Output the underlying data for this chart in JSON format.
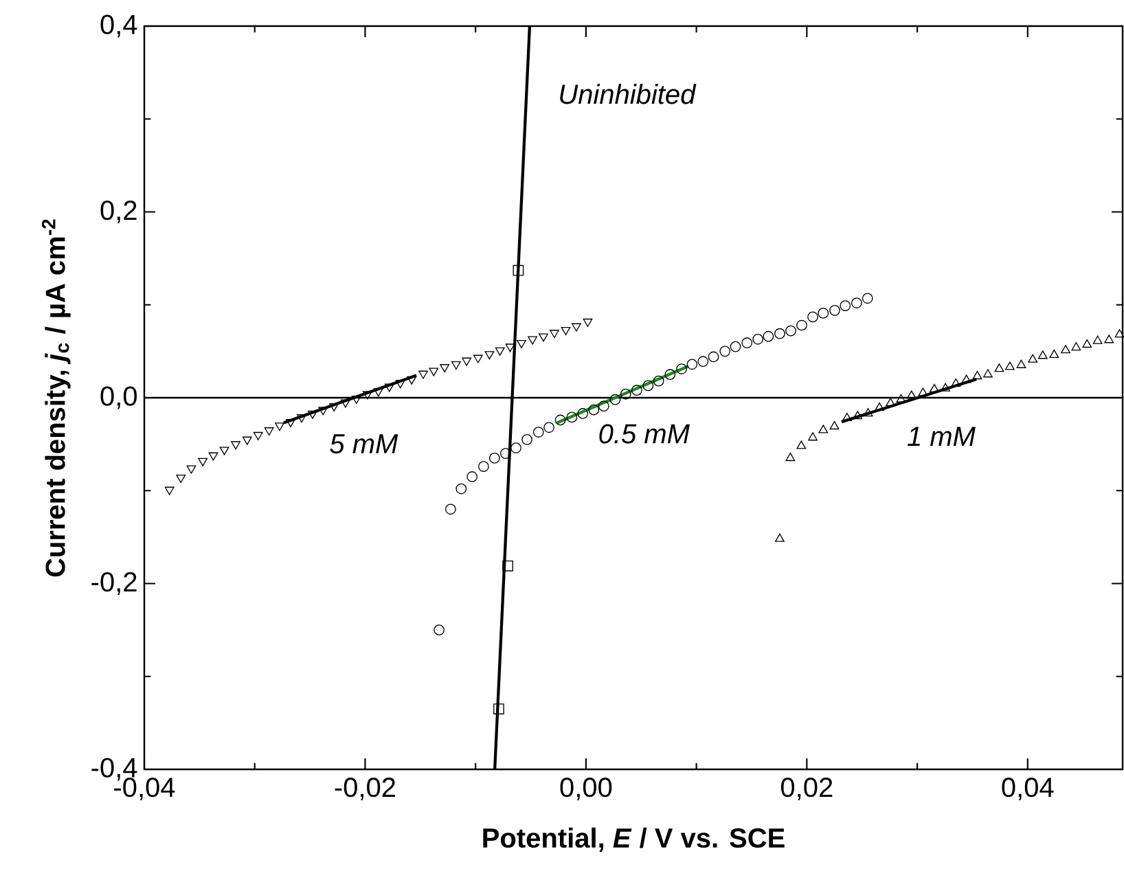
{
  "chart_data": {
    "type": "scatter",
    "xlabel": "Potential, *E* / V vs. SCE",
    "ylabel": "Current density, *j*$_{c}$ / µA cm$^{-2}$",
    "xlim": [
      -0.04,
      0.0486
    ],
    "ylim": [
      -0.4,
      0.4
    ],
    "xticks": [
      {
        "value": -0.04,
        "label": "-0,04"
      },
      {
        "value": -0.02,
        "label": "-0,02"
      },
      {
        "value": 0,
        "label": "0,00"
      },
      {
        "value": 0.02,
        "label": "0,02"
      },
      {
        "value": 0.04,
        "label": "0,04"
      }
    ],
    "yticks": [
      {
        "value": -0.4,
        "label": "-0,4"
      },
      {
        "value": -0.2,
        "label": "-0,2"
      },
      {
        "value": 0,
        "label": "0,0"
      },
      {
        "value": 0.2,
        "label": "0,2"
      },
      {
        "value": 0.4,
        "label": "0,4"
      }
    ],
    "ref_lines": [
      {
        "axis": "y",
        "value": 0,
        "color": "#000000"
      }
    ],
    "series": [
      {
        "name": "5 mM",
        "marker": "triangle-down",
        "color": "#000000",
        "x": [
          -0.03772,
          -0.03669,
          -0.03574,
          -0.0347,
          -0.03375,
          -0.03275,
          -0.03172,
          -0.03068,
          -0.02969,
          -0.0287,
          -0.02774,
          -0.02675,
          -0.02575,
          -0.02476,
          -0.02381,
          -0.02282,
          -0.02178,
          -0.02079,
          -0.01979,
          -0.0188,
          -0.0178,
          -0.01681,
          -0.01578,
          -0.01474,
          -0.01379,
          -0.0128,
          -0.01176,
          -0.01081,
          -0.00977,
          -0.00874,
          -0.00779,
          -0.00687,
          -0.00584,
          -0.00484,
          -0.00385,
          -0.00286,
          -0.00183,
          -0.00087,
          0.00016
        ],
        "values": [
          -0.099,
          -0.086,
          -0.076,
          -0.068,
          -0.062,
          -0.056,
          -0.05,
          -0.045,
          -0.04,
          -0.035,
          -0.03,
          -0.026,
          -0.021,
          -0.017,
          -0.013,
          -0.009,
          -0.005,
          -0.001,
          0.004,
          0.007,
          0.012,
          0.016,
          0.02,
          0.026,
          0.029,
          0.033,
          0.036,
          0.04,
          0.043,
          0.047,
          0.051,
          0.055,
          0.059,
          0.063,
          0.066,
          0.07,
          0.073,
          0.077,
          0.082
        ]
      },
      {
        "type": "line",
        "color": "#000000",
        "x": [
          -0.02737,
          -0.01536
        ],
        "values": [
          -0.027,
          0.024
        ]
      },
      {
        "name": "0.5 mM",
        "marker": "circle",
        "color": "#000000",
        "x": [
          -0.0133,
          -0.01226,
          -0.0113,
          -0.01031,
          -0.00927,
          -0.00828,
          -0.00728,
          -0.00634,
          -0.00534,
          -0.0043,
          -0.00335,
          -0.00232,
          -0.00128,
          -0.00029,
          0.00071,
          0.00161,
          0.00265,
          0.0036,
          0.0046,
          0.00563,
          0.00658,
          0.00762,
          0.00866,
          0.00961,
          0.0106,
          0.01155,
          0.01259,
          0.01354,
          0.01458,
          0.01557,
          0.01652,
          0.01755,
          0.01855,
          0.01954,
          0.02054,
          0.02149,
          0.02253,
          0.02348,
          0.02451,
          0.0255
        ],
        "values": [
          -0.25,
          -0.12,
          -0.098,
          -0.085,
          -0.074,
          -0.065,
          -0.06,
          -0.054,
          -0.045,
          -0.037,
          -0.032,
          -0.024,
          -0.021,
          -0.017,
          -0.013,
          -0.009,
          -0.002,
          0.004,
          0.008,
          0.013,
          0.018,
          0.025,
          0.031,
          0.036,
          0.039,
          0.044,
          0.05,
          0.055,
          0.059,
          0.063,
          0.066,
          0.069,
          0.072,
          0.078,
          0.087,
          0.091,
          0.094,
          0.099,
          0.102,
          0.107
        ]
      },
      {
        "type": "line",
        "color": "#1a8c1a",
        "x": [
          -0.00261,
          0.00928
        ],
        "values": [
          -0.027,
          0.034
        ]
      },
      {
        "name": "1 mM",
        "marker": "triangle",
        "color": "#000000",
        "x": [
          0.01755,
          0.01851,
          0.0195,
          0.02054,
          0.02149,
          0.0225,
          0.02364,
          0.0246,
          0.02555,
          0.02658,
          0.02758,
          0.02853,
          0.02948,
          0.03052,
          0.03155,
          0.03255,
          0.0335,
          0.03445,
          0.03544,
          0.0364,
          0.03743,
          0.03839,
          0.03942,
          0.04046,
          0.04137,
          0.0424,
          0.04344,
          0.04439,
          0.04538,
          0.04634,
          0.04737,
          0.04832
        ],
        "values": [
          -0.152,
          -0.065,
          -0.052,
          -0.043,
          -0.035,
          -0.031,
          -0.022,
          -0.02,
          -0.017,
          -0.011,
          -0.006,
          -0.002,
          0.002,
          0.005,
          0.009,
          0.01,
          0.015,
          0.019,
          0.023,
          0.025,
          0.031,
          0.033,
          0.035,
          0.041,
          0.045,
          0.046,
          0.051,
          0.054,
          0.057,
          0.061,
          0.062,
          0.068
        ]
      },
      {
        "type": "line",
        "color": "#000000",
        "x": [
          0.02315,
          0.03536
        ],
        "values": [
          -0.026,
          0.02
        ]
      },
      {
        "marker": "square",
        "color": "#000000",
        "x": [
          -0.0079,
          -0.00708,
          -0.00613
        ],
        "values": [
          -0.335,
          -0.181,
          0.137
        ]
      },
      {
        "name": "Uninhibited",
        "type": "line",
        "color": "#000000",
        "x": [
          -0.00826,
          -0.0051
        ],
        "values": [
          -0.4,
          0.4
        ]
      }
    ]
  }
}
